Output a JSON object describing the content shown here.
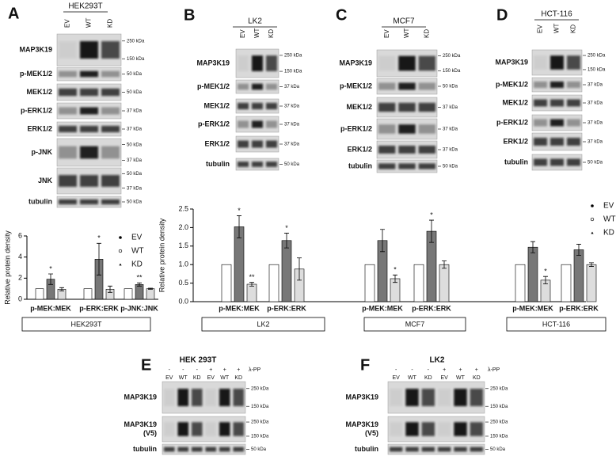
{
  "panels": [
    {
      "letter": "A",
      "cell_line": "HEK293T",
      "lanes": [
        "EV",
        "WT",
        "KD"
      ],
      "rows": [
        {
          "label": "MAP3K19",
          "markers": [
            "250 kDa",
            "150 kDa"
          ]
        },
        {
          "label": "p-MEK1/2",
          "markers": [
            "50 kDa"
          ]
        },
        {
          "label": "MEK1/2",
          "markers": [
            "50 kDa"
          ]
        },
        {
          "label": "p-ERK1/2",
          "markers": [
            "37 kDa"
          ]
        },
        {
          "label": "ERK1/2",
          "markers": [
            "37 kDa"
          ]
        },
        {
          "label": "p-JNK",
          "markers": [
            "50 kDa",
            "37 kDa"
          ]
        },
        {
          "label": "JNK",
          "markers": [
            "50 kDa",
            "37 kDa"
          ]
        },
        {
          "label": "tubulin",
          "markers": [
            "50 kDa"
          ]
        }
      ]
    },
    {
      "letter": "B",
      "cell_line": "LK2",
      "lanes": [
        "EV",
        "WT",
        "KD"
      ],
      "rows": [
        {
          "label": "MAP3K19",
          "markers": [
            "250 kDa",
            "150 kDa"
          ]
        },
        {
          "label": "p-MEK1/2",
          "markers": [
            "37 kDa"
          ]
        },
        {
          "label": "MEK1/2",
          "markers": [
            "37 kDa"
          ]
        },
        {
          "label": "p-ERK1/2",
          "markers": [
            "37 kDa"
          ]
        },
        {
          "label": "ERK1/2",
          "markers": [
            "37 kDa"
          ]
        },
        {
          "label": "tubulin",
          "markers": [
            "50 kDa"
          ]
        }
      ]
    },
    {
      "letter": "C",
      "cell_line": "MCF7",
      "lanes": [
        "EV",
        "WT",
        "KD"
      ],
      "rows": [
        {
          "label": "MAP3K19",
          "markers": [
            "250 kDa",
            "150 kDa"
          ]
        },
        {
          "label": "p-MEK1/2",
          "markers": [
            "50 kDa"
          ]
        },
        {
          "label": "MEK1/2",
          "markers": [
            "37 kDa"
          ]
        },
        {
          "label": "p-ERK1/2",
          "markers": [
            "37 kDa"
          ]
        },
        {
          "label": "ERK1/2",
          "markers": [
            "37 kDa"
          ]
        },
        {
          "label": "tubulin",
          "markers": [
            "50 kDa"
          ]
        }
      ]
    },
    {
      "letter": "D",
      "cell_line": "HCT-116",
      "lanes": [
        "EV",
        "WT",
        "KD"
      ],
      "rows": [
        {
          "label": "MAP3K19",
          "markers": [
            "250 kDa",
            "150 kDa"
          ]
        },
        {
          "label": "p-MEK1/2",
          "markers": [
            "37 kDa"
          ]
        },
        {
          "label": "MEK1/2",
          "markers": [
            "37 kDa"
          ]
        },
        {
          "label": "p-ERK1/2",
          "markers": [
            "37 kDa"
          ]
        },
        {
          "label": "ERK1/2",
          "markers": [
            "37 kDa"
          ]
        },
        {
          "label": "tubulin",
          "markers": [
            "50 kDa"
          ]
        }
      ]
    }
  ],
  "lambda_panels": [
    {
      "letter": "E",
      "cell_line": "HEK 293T",
      "treatment_label": "λ-PP",
      "treatment": [
        "-",
        "-",
        "-",
        "+",
        "+",
        "+"
      ],
      "lanes": [
        "EV",
        "WT",
        "KD",
        "EV",
        "WT",
        "KD"
      ],
      "rows": [
        {
          "label": [
            "MAP3K19"
          ],
          "markers": [
            "250 kDa",
            "150 kDa"
          ]
        },
        {
          "label": [
            "MAP3K19",
            "(V5)"
          ],
          "markers": [
            "250 kDa",
            "150 kDa"
          ]
        },
        {
          "label": [
            "tubulin"
          ],
          "markers": [
            "50 kDa"
          ]
        }
      ]
    },
    {
      "letter": "F",
      "cell_line": "LK2",
      "treatment_label": "λ-PP",
      "treatment": [
        "-",
        "-",
        "-",
        "+",
        "+",
        "+"
      ],
      "lanes": [
        "EV",
        "WT",
        "KD",
        "EV",
        "WT",
        "KD"
      ],
      "rows": [
        {
          "label": [
            "MAP3K19"
          ],
          "markers": [
            "250 kDa",
            "150 kDa"
          ]
        },
        {
          "label": [
            "MAP3K19",
            "(V5)"
          ],
          "markers": [
            "250 kDa",
            "150 kDa"
          ]
        },
        {
          "label": [
            "tubulin"
          ],
          "markers": [
            "50 kDa"
          ]
        }
      ]
    }
  ],
  "chart_data": [
    {
      "type": "bar",
      "y_label": "Relative protein density",
      "categories": [
        "p-MEK:MEK",
        "p-ERK:ERK",
        "p-JNK:JNK"
      ],
      "group_labels": [
        "HEK293T"
      ],
      "ylim": [
        0,
        6
      ],
      "yticks": [
        0,
        2,
        4,
        6
      ],
      "series": [
        {
          "name": "EV",
          "color": "#ffffff",
          "marker": "dot",
          "values": [
            1,
            1,
            1
          ],
          "errors": [
            0,
            0,
            0
          ],
          "stars": [
            null,
            null,
            null
          ]
        },
        {
          "name": "WT",
          "color": "#777777",
          "marker": "circle",
          "values": [
            1.9,
            3.8,
            1.4
          ],
          "errors": [
            0.5,
            1.5,
            0.15
          ],
          "stars": [
            "*",
            "*",
            "**"
          ]
        },
        {
          "name": "KD",
          "color": "#dddddd",
          "marker": "triangle",
          "values": [
            0.95,
            0.95,
            1.0
          ],
          "errors": [
            0.15,
            0.3,
            0.05
          ],
          "stars": [
            null,
            null,
            null
          ]
        }
      ]
    },
    {
      "type": "bar",
      "y_label": "Relative protein density",
      "categories": [
        "p-MEK:MEK",
        "p-ERK:ERK",
        "p-MEK:MEK",
        "p-ERK:ERK",
        "p-MEK:MEK",
        "p-ERK:ERK"
      ],
      "group_labels": [
        "LK2",
        "MCF7",
        "HCT-116"
      ],
      "ylim": [
        0,
        2.5
      ],
      "yticks": [
        {
          "value": 0,
          "label": "0.0"
        },
        0.5,
        {
          "value": 1,
          "label": "1.0"
        },
        1.5,
        {
          "value": 2,
          "label": "2.0"
        },
        2.5
      ],
      "series": [
        {
          "name": "EV",
          "color": "#ffffff",
          "marker": "dot",
          "values": [
            1,
            1,
            1,
            1,
            1,
            1
          ],
          "errors": [
            0,
            0,
            0,
            0,
            0,
            0
          ],
          "stars": [
            null,
            null,
            null,
            null,
            null,
            null
          ]
        },
        {
          "name": "WT",
          "color": "#777777",
          "marker": "circle",
          "values": [
            2.02,
            1.65,
            1.65,
            1.9,
            1.47,
            1.4
          ],
          "errors": [
            0.3,
            0.2,
            0.3,
            0.3,
            0.15,
            0.15
          ],
          "stars": [
            "*",
            "*",
            null,
            "*",
            null,
            null
          ]
        },
        {
          "name": "KD",
          "color": "#dddddd",
          "marker": "triangle",
          "values": [
            0.47,
            0.88,
            0.62,
            1.0,
            0.58,
            1.0
          ],
          "errors": [
            0.05,
            0.3,
            0.1,
            0.1,
            0.1,
            0.05
          ],
          "stars": [
            "**",
            null,
            "*",
            null,
            "*",
            null
          ]
        }
      ]
    }
  ]
}
